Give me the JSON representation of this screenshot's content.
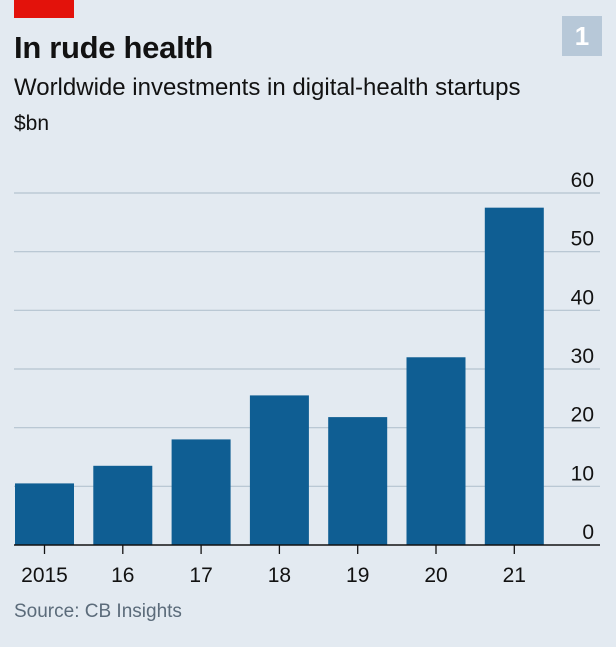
{
  "header": {
    "chart_number": "1"
  },
  "chart_data": {
    "type": "bar",
    "title": "In rude health",
    "subtitle": "Worldwide investments in digital-health startups",
    "unit": "$bn",
    "source": "Source: CB Insights",
    "categories": [
      "2015",
      "16",
      "17",
      "18",
      "19",
      "20",
      "21"
    ],
    "values": [
      10.5,
      13.5,
      18,
      25.5,
      21.8,
      32,
      57.5
    ],
    "ylim": [
      0,
      60
    ],
    "yticks": [
      "0",
      "10",
      "20",
      "30",
      "40",
      "50",
      "60"
    ],
    "ytick_values": [
      0,
      10,
      20,
      30,
      40,
      50,
      60
    ],
    "grid": true,
    "bar_color": "#0f5e93",
    "accent_color": "#e3120b"
  }
}
